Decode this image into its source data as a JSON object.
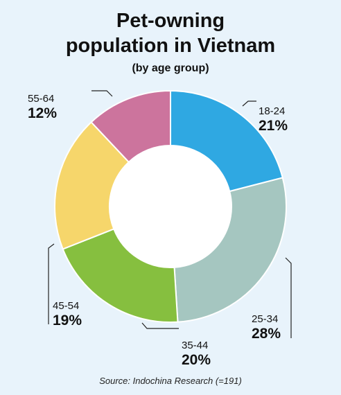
{
  "header": {
    "title_line1": "Pet-owning",
    "title_line2": "population in Vietnam",
    "subtitle": "(by age group)"
  },
  "chart_data": {
    "type": "pie",
    "donut": true,
    "title": "Pet-owning population in Vietnam",
    "subtitle": "(by age group)",
    "categories": [
      "18-24",
      "25-34",
      "35-44",
      "45-54",
      "55-64"
    ],
    "values": [
      21,
      28,
      20,
      19,
      12
    ],
    "value_labels": [
      "21%",
      "28%",
      "20%",
      "19%",
      "12%"
    ],
    "colors": [
      "#2fa8e2",
      "#a5c6c0",
      "#86bf3f",
      "#f6d66b",
      "#cc749d"
    ],
    "start": "12 o'clock",
    "direction": "clockwise"
  },
  "footer": {
    "source": "Source: Indochina Research (=191)"
  }
}
